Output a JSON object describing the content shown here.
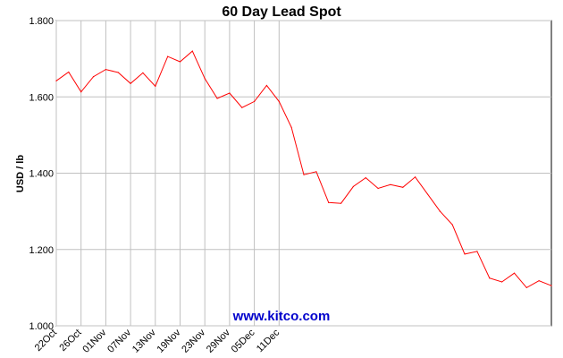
{
  "chart_data": {
    "type": "line",
    "title": "60 Day Lead Spot",
    "xlabel": "",
    "ylabel": "USD / lb",
    "watermark": "www.kitco.com",
    "ylim": [
      1.0,
      1.8
    ],
    "yticks": [
      1.0,
      1.2,
      1.4,
      1.6,
      1.8
    ],
    "ytick_labels": [
      "1.000",
      "1.200",
      "1.400",
      "1.600",
      "1.800"
    ],
    "xtick_labels": [
      "22Oct",
      "26Oct",
      "01Nov",
      "07Nov",
      "13Nov",
      "19Nov",
      "23Nov",
      "29Nov",
      "05Dec",
      "11Dec"
    ],
    "xtick_index": [
      0,
      2,
      4,
      6,
      8,
      10,
      12,
      14,
      16,
      18
    ],
    "grid": true,
    "line_color": "#ff0000",
    "series": [
      {
        "values": [
          1.642,
          1.665,
          1.613,
          1.653,
          1.672,
          1.664,
          1.635,
          1.663,
          1.628,
          1.706,
          1.692,
          1.72,
          1.648,
          1.596,
          1.61,
          1.572,
          1.588,
          1.63,
          1.588,
          1.52,
          1.396,
          1.404,
          1.323,
          1.321,
          1.365,
          1.388,
          1.36,
          1.37,
          1.363,
          1.39,
          1.345,
          1.3,
          1.265,
          1.188,
          1.195,
          1.125,
          1.115,
          1.138,
          1.1,
          1.118,
          1.105
        ]
      }
    ]
  }
}
